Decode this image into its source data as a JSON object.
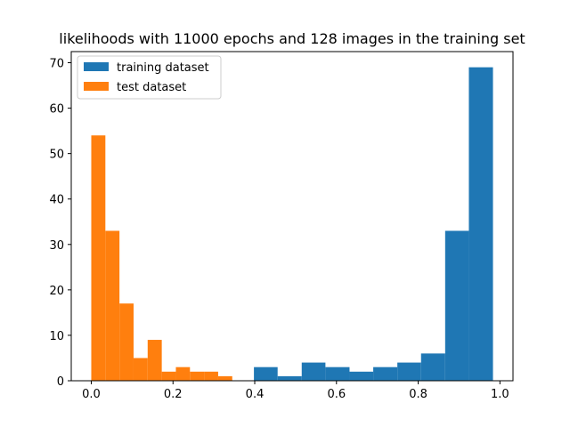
{
  "chart_data": {
    "type": "bar",
    "title": "likelihoods with 11000 epochs and 128 images in the training set",
    "xlabel": "",
    "ylabel": "",
    "xlim": [
      -0.049,
      1.032
    ],
    "ylim": [
      0,
      72.45
    ],
    "x_ticks": [
      0.0,
      0.2,
      0.4,
      0.6,
      0.8,
      1.0
    ],
    "x_tick_labels": [
      "0.0",
      "0.2",
      "0.4",
      "0.6",
      "0.8",
      "1.0"
    ],
    "y_ticks": [
      0,
      10,
      20,
      30,
      40,
      50,
      60,
      70
    ],
    "y_tick_labels": [
      "0",
      "10",
      "20",
      "30",
      "40",
      "50",
      "60",
      "70"
    ],
    "grid": false,
    "legend_position": "top-left",
    "series": [
      {
        "name": "training dataset",
        "color": "#1f77b4",
        "bins": [
          {
            "x0": 0.398,
            "x1": 0.456,
            "value": 3
          },
          {
            "x0": 0.456,
            "x1": 0.515,
            "value": 1
          },
          {
            "x0": 0.515,
            "x1": 0.573,
            "value": 4
          },
          {
            "x0": 0.573,
            "x1": 0.632,
            "value": 3
          },
          {
            "x0": 0.632,
            "x1": 0.69,
            "value": 2
          },
          {
            "x0": 0.69,
            "x1": 0.749,
            "value": 3
          },
          {
            "x0": 0.749,
            "x1": 0.807,
            "value": 4
          },
          {
            "x0": 0.807,
            "x1": 0.866,
            "value": 6
          },
          {
            "x0": 0.866,
            "x1": 0.924,
            "value": 33
          },
          {
            "x0": 0.924,
            "x1": 0.983,
            "value": 69
          }
        ]
      },
      {
        "name": "test dataset",
        "color": "#ff7f0e",
        "bins": [
          {
            "x0": 0.0,
            "x1": 0.0345,
            "value": 54
          },
          {
            "x0": 0.0345,
            "x1": 0.069,
            "value": 33
          },
          {
            "x0": 0.069,
            "x1": 0.1035,
            "value": 17
          },
          {
            "x0": 0.1035,
            "x1": 0.138,
            "value": 5
          },
          {
            "x0": 0.138,
            "x1": 0.1725,
            "value": 9
          },
          {
            "x0": 0.1725,
            "x1": 0.207,
            "value": 2
          },
          {
            "x0": 0.207,
            "x1": 0.2415,
            "value": 3
          },
          {
            "x0": 0.2415,
            "x1": 0.276,
            "value": 2
          },
          {
            "x0": 0.276,
            "x1": 0.3105,
            "value": 2
          },
          {
            "x0": 0.3105,
            "x1": 0.345,
            "value": 1
          }
        ]
      }
    ]
  }
}
